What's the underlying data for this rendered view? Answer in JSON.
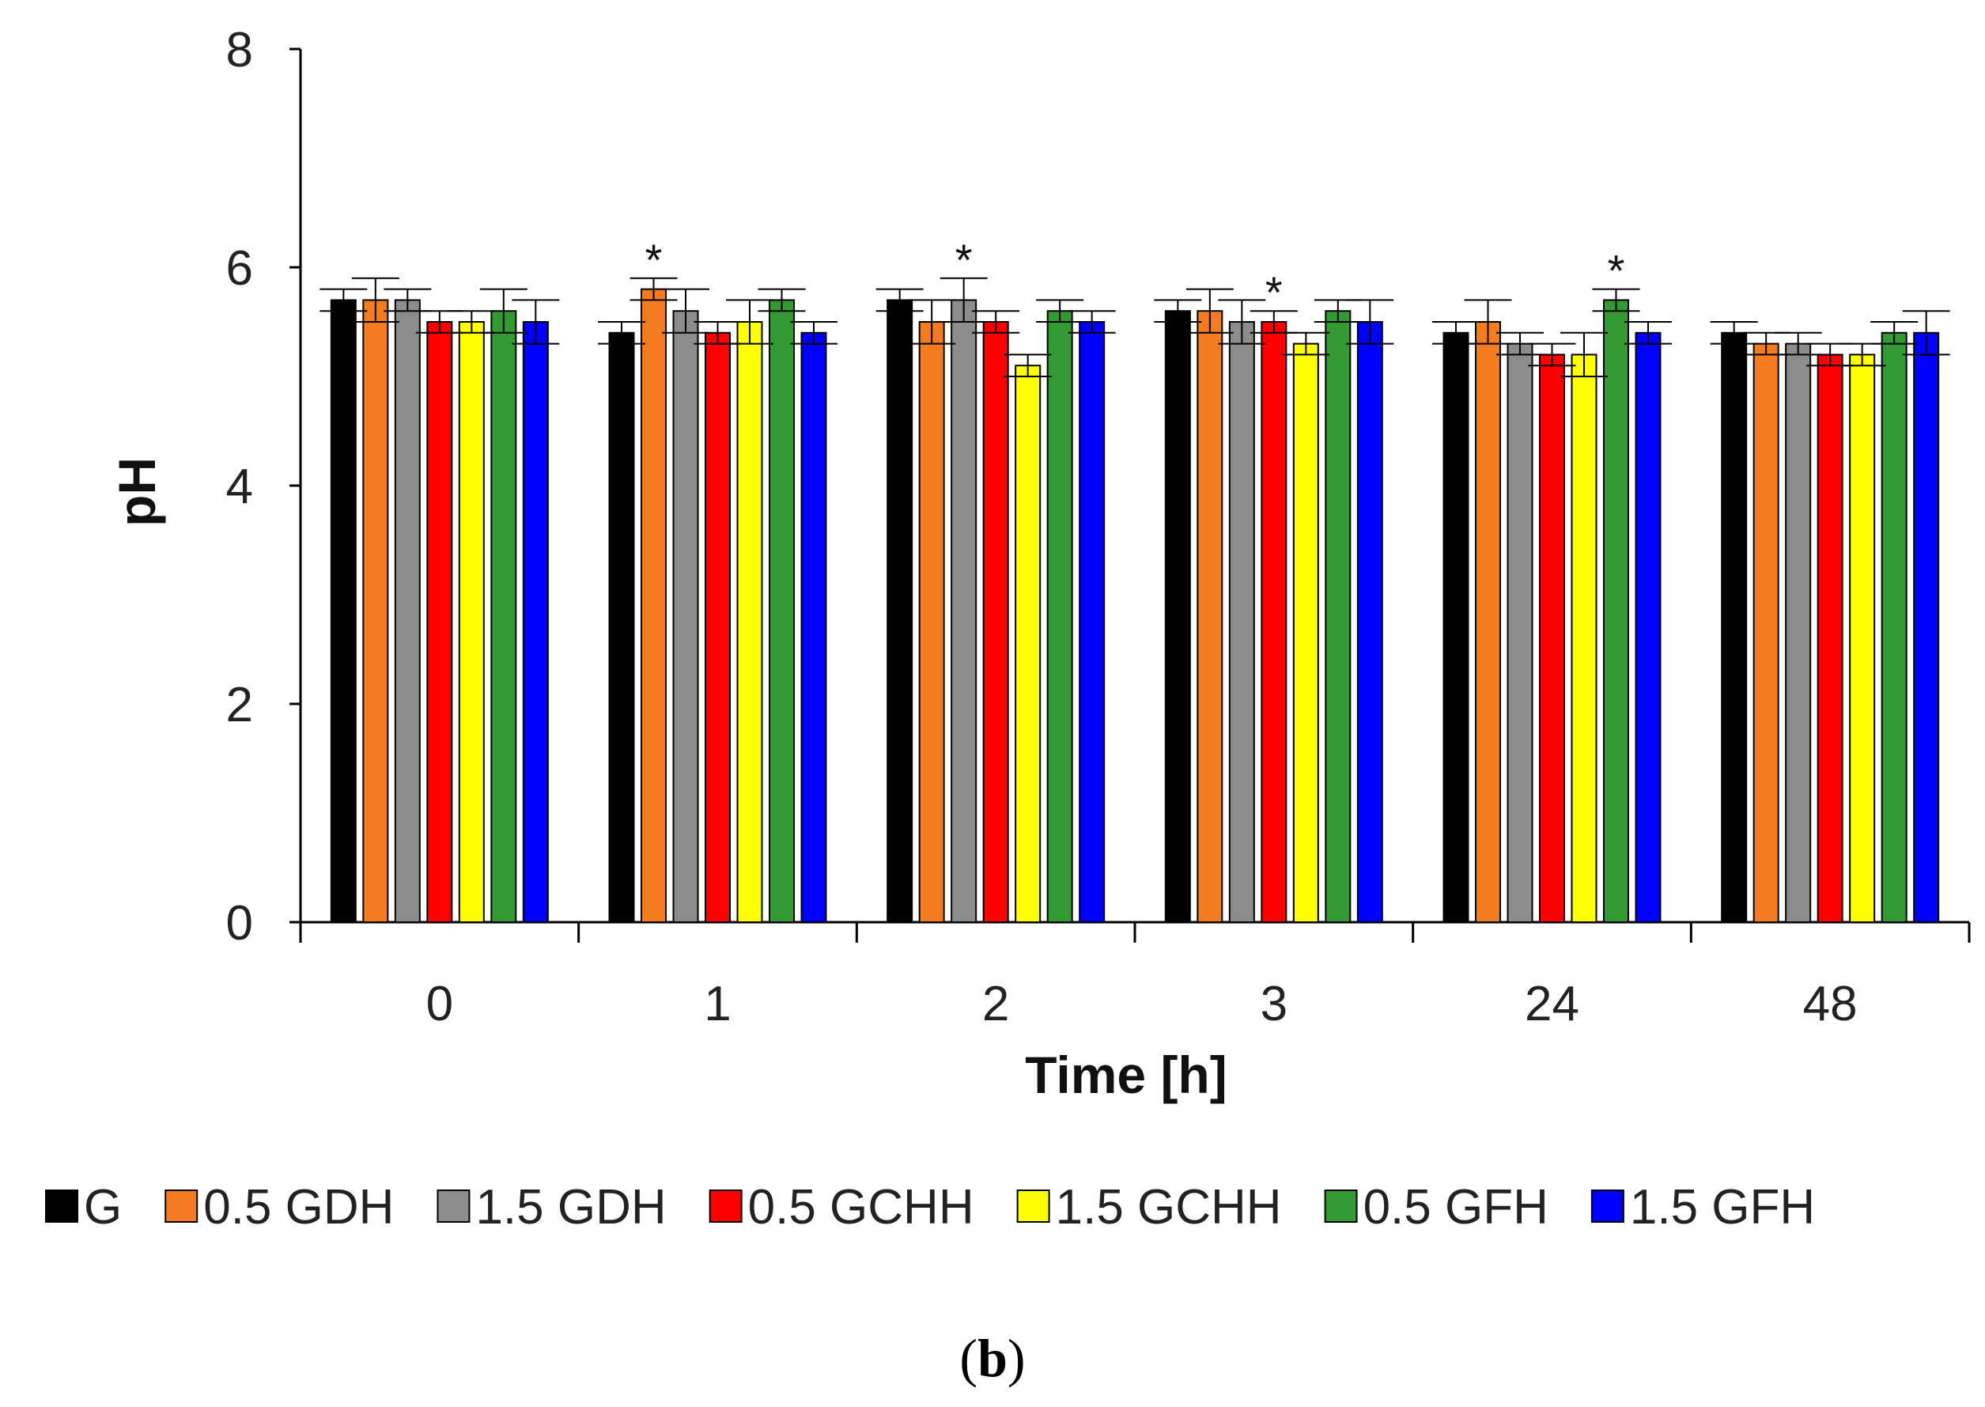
{
  "chart_data": {
    "type": "bar",
    "title": "",
    "xlabel": "Time [h]",
    "ylabel": "pH",
    "ylim": [
      0,
      8
    ],
    "yticks": [
      "0",
      "2",
      "4",
      "6",
      "8"
    ],
    "categories": [
      "0",
      "1",
      "2",
      "3",
      "24",
      "48"
    ],
    "grid": false,
    "legend_position": "bottom",
    "series": [
      {
        "name": "G",
        "color": "#000000",
        "values": [
          5.7,
          5.4,
          5.7,
          5.6,
          5.4,
          5.4
        ],
        "errors": [
          0.1,
          0.1,
          0.1,
          0.1,
          0.1,
          0.1
        ]
      },
      {
        "name": "0.5 GDH",
        "color": "#f47b20",
        "values": [
          5.7,
          5.8,
          5.5,
          5.6,
          5.5,
          5.3
        ],
        "errors": [
          0.2,
          0.1,
          0.2,
          0.2,
          0.2,
          0.1
        ]
      },
      {
        "name": "1.5 GDH",
        "color": "#8c8c8c",
        "values": [
          5.7,
          5.6,
          5.7,
          5.5,
          5.3,
          5.3
        ],
        "errors": [
          0.1,
          0.2,
          0.2,
          0.2,
          0.1,
          0.1
        ]
      },
      {
        "name": "0.5 GCHH",
        "color": "#ff0000",
        "values": [
          5.5,
          5.4,
          5.5,
          5.5,
          5.2,
          5.2
        ],
        "errors": [
          0.1,
          0.1,
          0.1,
          0.1,
          0.1,
          0.1
        ]
      },
      {
        "name": "1.5 GCHH",
        "color": "#ffff00",
        "values": [
          5.5,
          5.5,
          5.1,
          5.3,
          5.2,
          5.2
        ],
        "errors": [
          0.1,
          0.2,
          0.1,
          0.1,
          0.2,
          0.1
        ]
      },
      {
        "name": "0.5 GFH",
        "color": "#339933",
        "values": [
          5.6,
          5.7,
          5.6,
          5.6,
          5.7,
          5.4
        ],
        "errors": [
          0.2,
          0.1,
          0.1,
          0.1,
          0.1,
          0.1
        ]
      },
      {
        "name": "1.5 GFH",
        "color": "#0000ff",
        "values": [
          5.5,
          5.4,
          5.5,
          5.5,
          5.4,
          5.4
        ],
        "errors": [
          0.2,
          0.1,
          0.1,
          0.2,
          0.1,
          0.2
        ]
      }
    ],
    "annotations": [
      {
        "text": "*",
        "category": "1",
        "series": "0.5 GDH"
      },
      {
        "text": "*",
        "category": "2",
        "series": "1.5 GDH"
      },
      {
        "text": "*",
        "category": "3",
        "series": "0.5 GCHH"
      },
      {
        "text": "*",
        "category": "24",
        "series": "0.5 GFH"
      }
    ]
  },
  "caption": {
    "open": "(",
    "label": "b",
    "close": ")"
  }
}
